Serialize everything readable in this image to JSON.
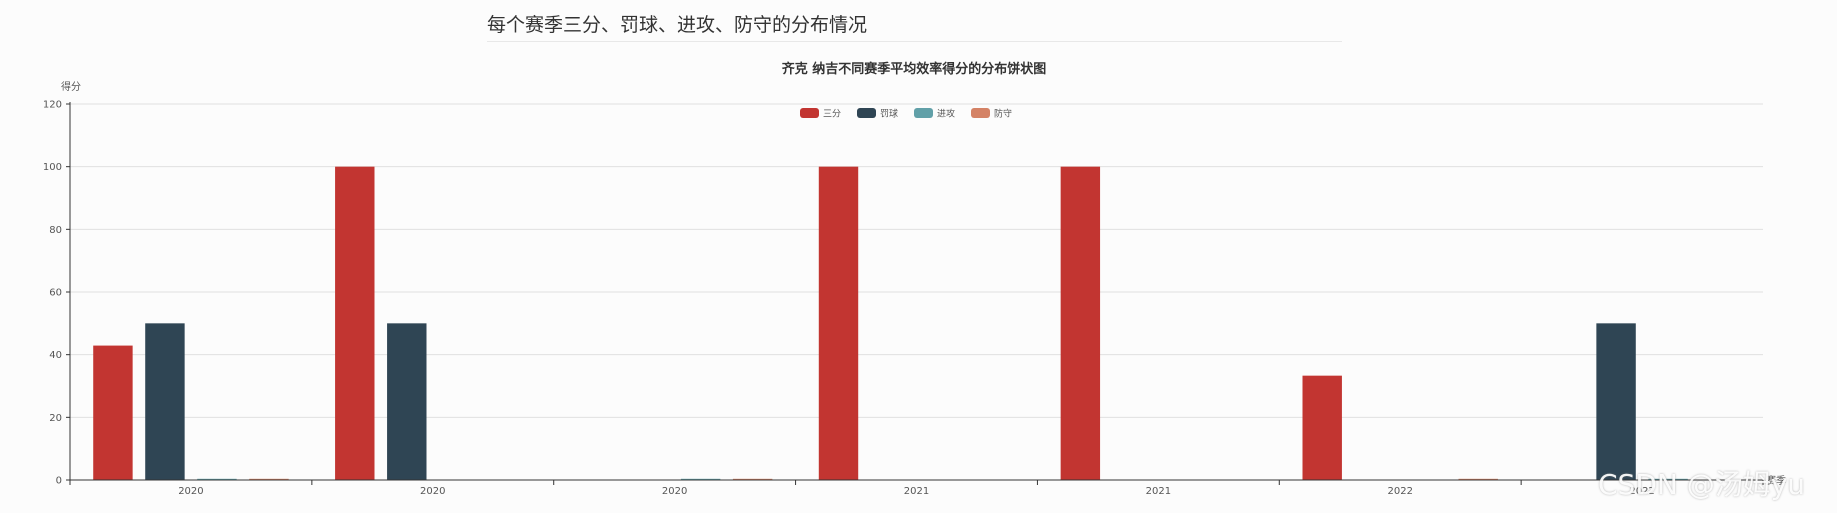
{
  "page": {
    "heading": "每个赛季三分、罚球、进攻、防守的分布情况",
    "watermark": "CSDN @汤姆yu"
  },
  "colors": {
    "series": [
      "#c23531",
      "#2f4554",
      "#61a0a8",
      "#d48265"
    ],
    "axis": "#333333",
    "grid": "#e0e0e0"
  },
  "chart_data": {
    "type": "bar",
    "title": "齐克 纳吉不同赛季平均效率得分的分布饼状图",
    "xlabel": "赛季",
    "ylabel": "得分",
    "ylim": [
      0,
      120
    ],
    "yticks": [
      0,
      20,
      40,
      60,
      80,
      100,
      120
    ],
    "grid": true,
    "legend_position": "top-center",
    "categories": [
      "2020",
      "2020",
      "2020",
      "2021",
      "2021",
      "2022",
      "2022"
    ],
    "series": [
      {
        "name": "三分",
        "values": [
          42.9,
          100,
          0,
          100,
          100,
          33.3,
          0
        ]
      },
      {
        "name": "罚球",
        "values": [
          50,
          50,
          0,
          0,
          0,
          0,
          50
        ]
      },
      {
        "name": "进攻",
        "values": [
          0.3,
          0,
          0.3,
          0,
          0,
          0,
          0.3
        ]
      },
      {
        "name": "防守",
        "values": [
          0.3,
          0,
          0.3,
          0,
          0,
          0.3,
          0
        ]
      }
    ]
  }
}
